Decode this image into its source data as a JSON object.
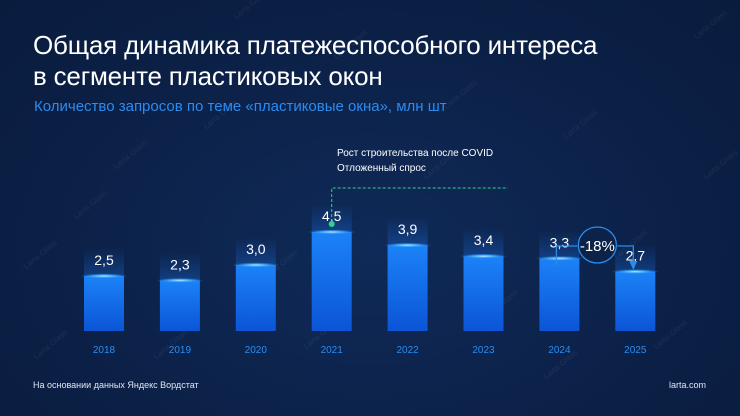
{
  "title_line1": "Общая динамика платежеспособного интереса",
  "title_line2": "в сегменте пластиковых окон",
  "subtitle": "Количество запросов по теме «пластиковые окна», млн шт",
  "footer_source": "На основании данных Яндекс Вордстат",
  "footer_site": "larta.com",
  "watermark": "Larta Glass",
  "annotation": {
    "line1": "Рост строительства после COVID",
    "line2": "Отложенный спрос",
    "year": "2021",
    "marker_color": "#2fd38a"
  },
  "change_badge": {
    "label": "-18%",
    "from": "2024",
    "to": "2025"
  },
  "colors": {
    "background": "#0c2248",
    "bar_top": "#1a7cf5",
    "bar_bottom": "#0a4fd0",
    "year_label": "#2a8cf0"
  },
  "chart_data": {
    "type": "bar",
    "categories": [
      "2018",
      "2019",
      "2020",
      "2021",
      "2022",
      "2023",
      "2024",
      "2025"
    ],
    "values": [
      2.5,
      2.3,
      3.0,
      4.5,
      3.9,
      3.4,
      3.3,
      2.7
    ],
    "data_labels": [
      "2,5",
      "2,3",
      "3,0",
      "4,5",
      "3,9",
      "3,4",
      "3,3",
      "2,7"
    ],
    "ylabel": "",
    "grid": false
  }
}
